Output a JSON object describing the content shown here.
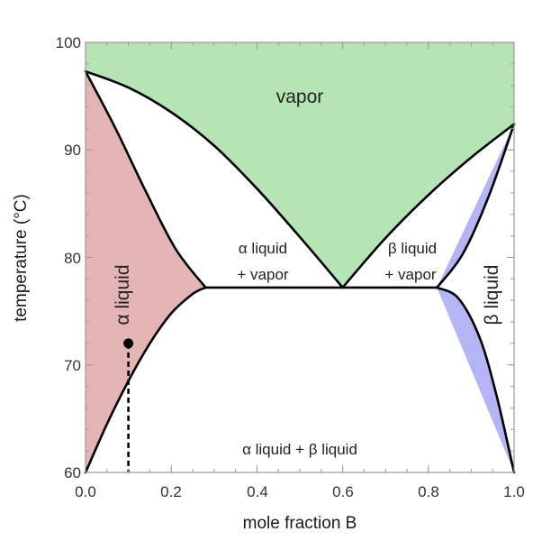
{
  "chart_data": {
    "type": "area",
    "title": "",
    "xlabel": "mole fraction B",
    "ylabel": "temperature (°C)",
    "xlim": [
      0.0,
      1.0
    ],
    "ylim": [
      60,
      100
    ],
    "x_ticks": [
      0.0,
      0.2,
      0.4,
      0.6,
      0.8,
      1.0
    ],
    "x_tick_labels": [
      "0.0",
      "0.2",
      "0.4",
      "0.6",
      "0.8",
      "1.0"
    ],
    "y_ticks": [
      60,
      70,
      80,
      90,
      100
    ],
    "y_tick_labels": [
      "60",
      "70",
      "80",
      "90",
      "100"
    ],
    "grid": false,
    "special_points": {
      "pure_A_boiling": {
        "x": 0.0,
        "y": 97.3
      },
      "pure_B_boiling": {
        "x": 1.0,
        "y": 92.4
      },
      "azeotrope": {
        "x": 0.6,
        "y": 77.2
      },
      "three_phase_line": {
        "x": [
          0.28,
          0.82
        ],
        "y": 77.2
      },
      "alpha_solubility_at_60": {
        "x": 0.0,
        "y": 60
      },
      "beta_solubility_at_60": {
        "x": 1.0,
        "y": 60
      }
    },
    "boundaries": [
      {
        "name": "alpha liquid vapor dew",
        "x": [
          0.0,
          0.1,
          0.2,
          0.3,
          0.4,
          0.5,
          0.6
        ],
        "y": [
          97.3,
          95.8,
          93.5,
          90.4,
          86.4,
          81.9,
          77.2
        ]
      },
      {
        "name": "alpha liquid bubble",
        "x": [
          0.0,
          0.07,
          0.14,
          0.21,
          0.28
        ],
        "y": [
          97.3,
          92.0,
          86.2,
          80.8,
          77.2
        ]
      },
      {
        "name": "beta liquid vapor dew",
        "x": [
          0.6,
          0.7,
          0.8,
          0.9,
          1.0
        ],
        "y": [
          77.2,
          81.8,
          85.8,
          89.3,
          92.4
        ]
      },
      {
        "name": "beta liquid bubble",
        "x": [
          0.82,
          0.88,
          0.94,
          1.0
        ],
        "y": [
          77.2,
          80.3,
          85.6,
          92.4
        ]
      },
      {
        "name": "alpha liquid solubility",
        "x": [
          0.0,
          0.05,
          0.1,
          0.15,
          0.2,
          0.25,
          0.28
        ],
        "y": [
          60,
          64.5,
          68.5,
          72.0,
          74.8,
          76.6,
          77.2
        ]
      },
      {
        "name": "beta liquid solubility",
        "x": [
          0.82,
          0.87,
          0.92,
          0.96,
          1.0
        ],
        "y": [
          77.2,
          76.2,
          72.5,
          67.0,
          60
        ]
      }
    ],
    "regions": {
      "vapor": {
        "label": "vapor",
        "color": "#b5e5b5"
      },
      "alpha_liquid": {
        "label": "α liquid",
        "color": "#e5b4b4"
      },
      "beta_liquid": {
        "label": "β liquid",
        "color": "#b5b5f5"
      },
      "alpha_liquid_vapor": {
        "line1": "α liquid",
        "line2": "+ vapor"
      },
      "beta_liquid_vapor": {
        "line1": "β liquid",
        "line2": "+ vapor"
      },
      "two_liquid": {
        "label": "α liquid + β liquid"
      }
    },
    "marker": {
      "x": 0.1,
      "y": 72.0,
      "drop_line": "dashed",
      "drop_to": 60
    }
  }
}
